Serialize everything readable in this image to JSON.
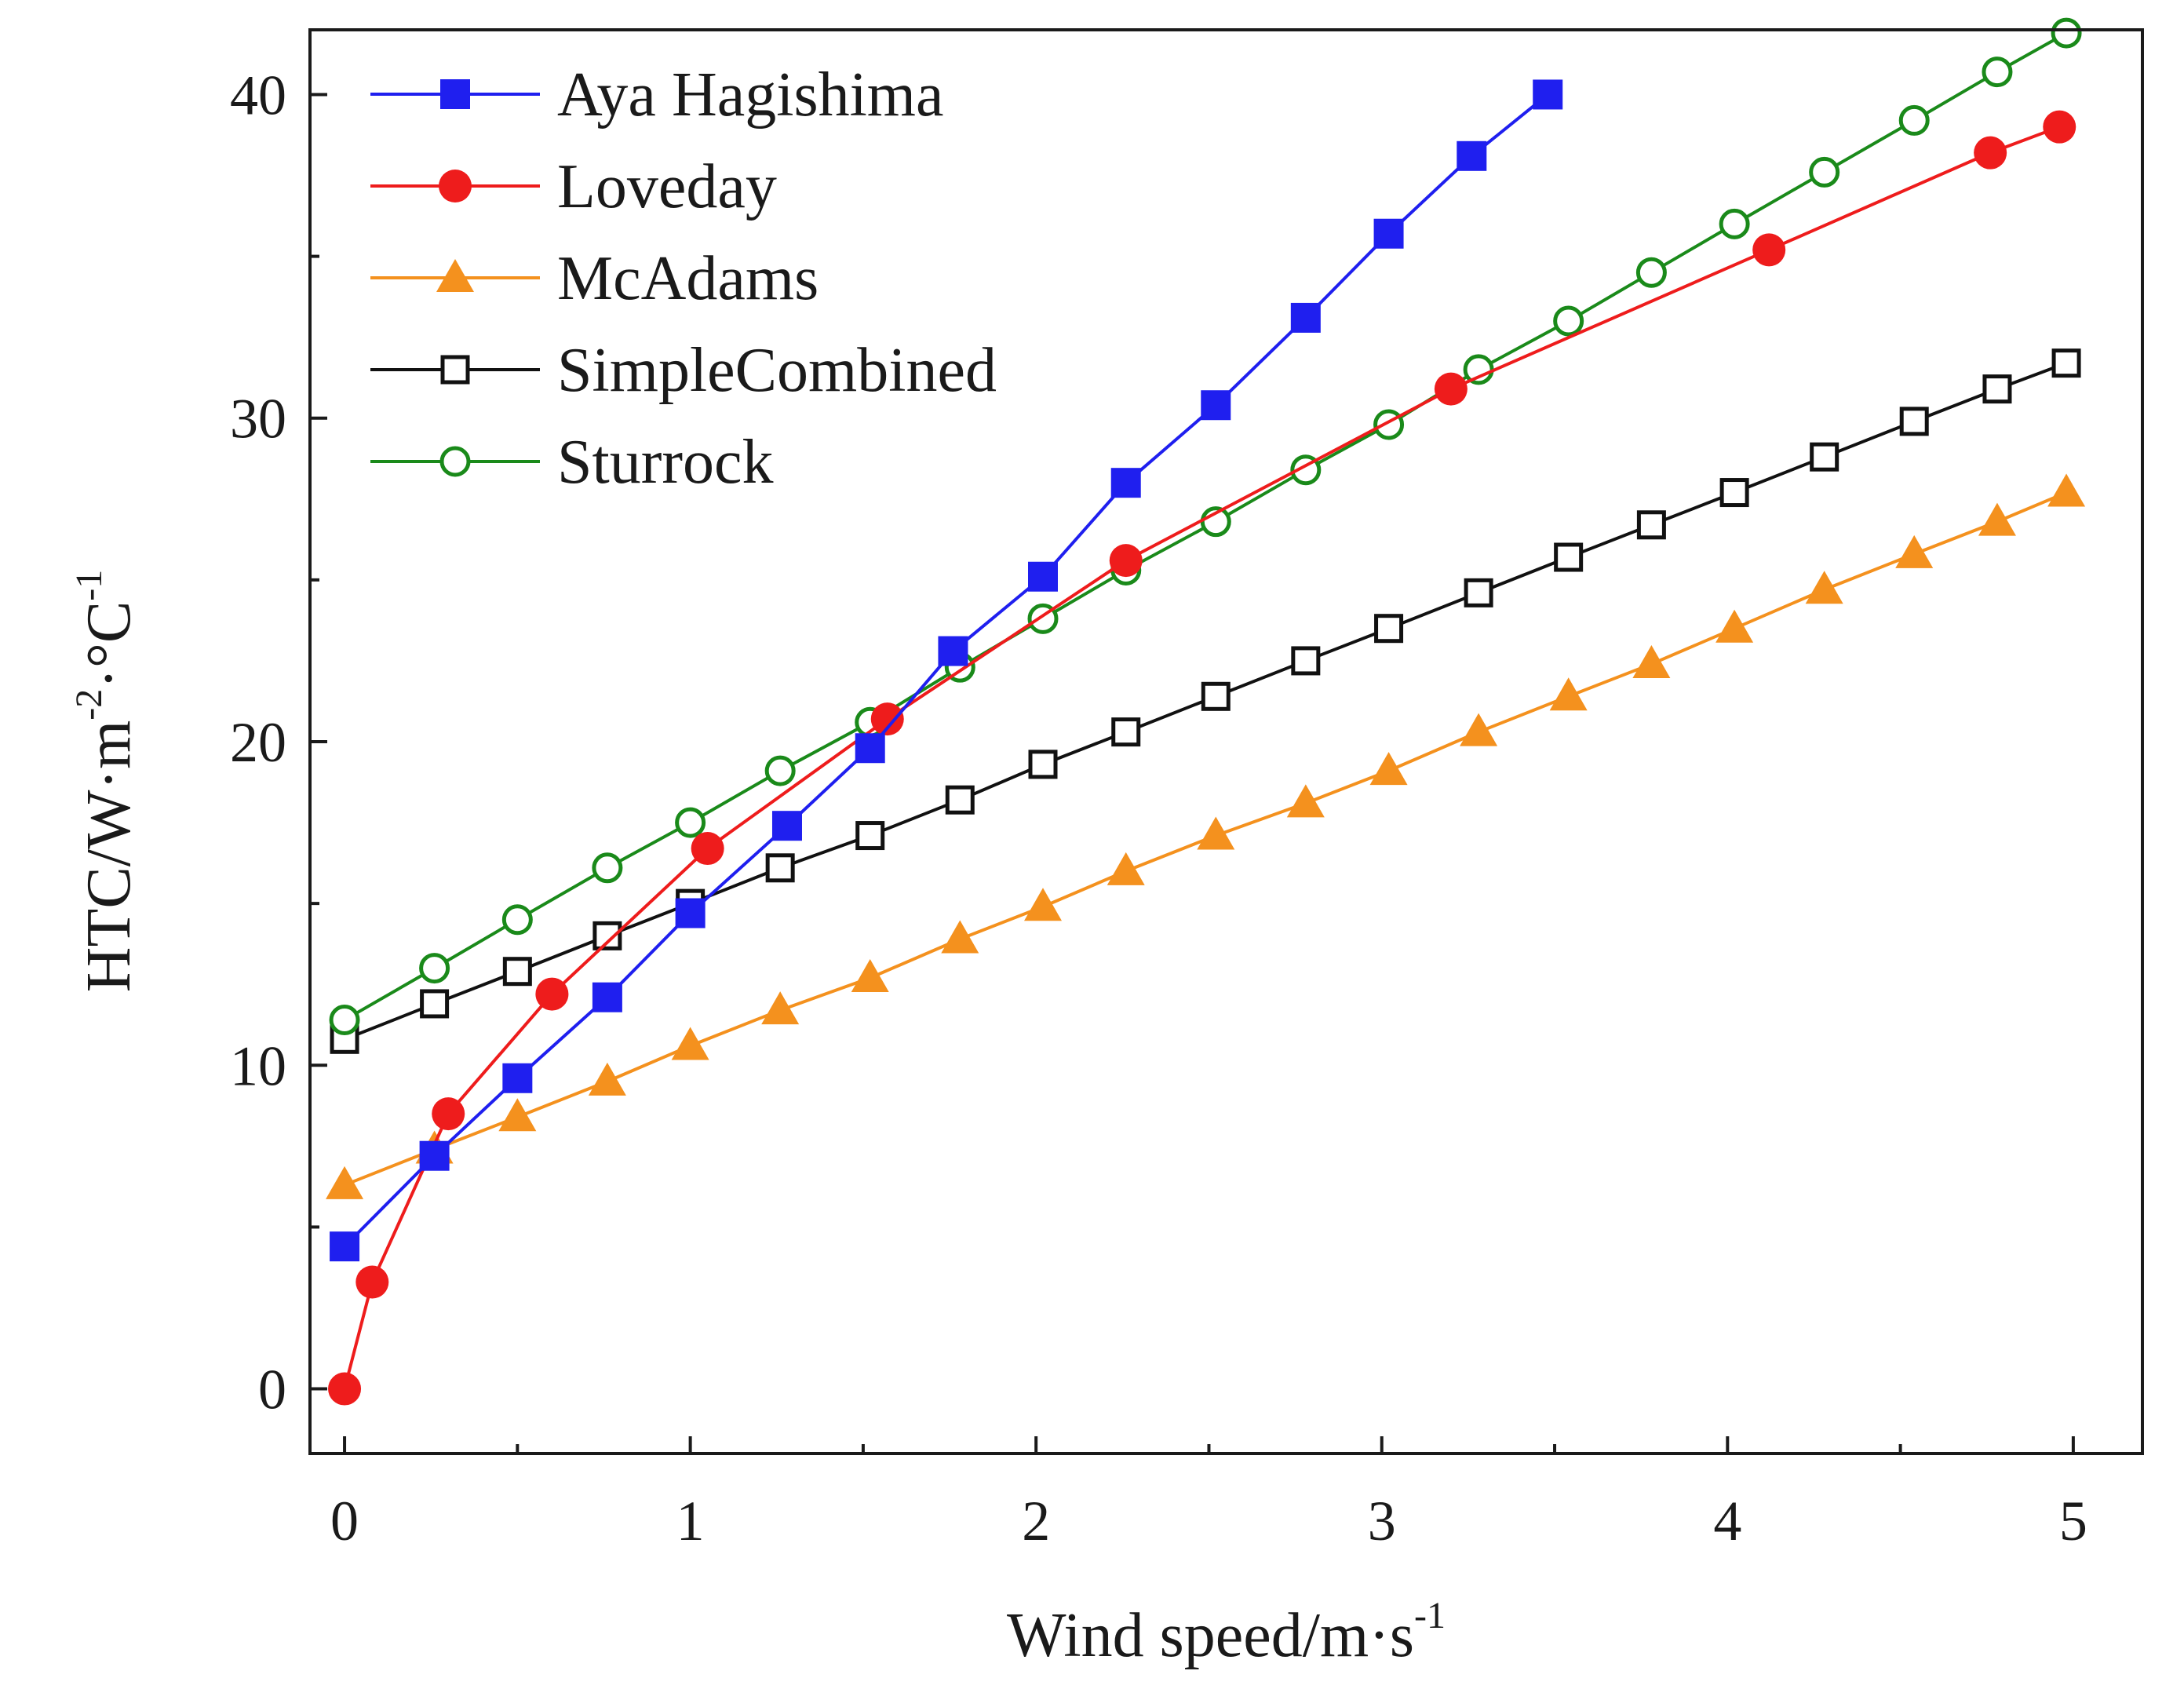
{
  "chart_data": {
    "type": "line",
    "title": "",
    "xlabel": "Wind speed/m·s",
    "xlabel_sup": "-1",
    "ylabel": "HTC/W·m",
    "ylabel_sup1": "-2",
    "ylabel_mid": "·°C",
    "ylabel_sup2": "-1",
    "xlim": [
      -0.1,
      5.2
    ],
    "ylim": [
      -2,
      42
    ],
    "xticks": [
      0,
      1,
      2,
      3,
      4,
      5
    ],
    "yticks": [
      0,
      10,
      20,
      30,
      40
    ],
    "legend_position": "top-left",
    "grid": false,
    "series": [
      {
        "name": "Aya Hagishima",
        "color": "#1f1fef",
        "marker": "square-filled",
        "x": [
          0,
          0.26,
          0.5,
          0.76,
          1.0,
          1.28,
          1.52,
          1.76,
          2.02,
          2.26,
          2.52,
          2.78,
          3.02,
          3.26,
          3.48
        ],
        "y": [
          4.4,
          7.2,
          9.6,
          12.1,
          14.7,
          17.4,
          19.8,
          22.8,
          25.1,
          28.0,
          30.4,
          33.1,
          35.7,
          38.1,
          40.0
        ]
      },
      {
        "name": "Loveday",
        "color": "#ee1c1c",
        "marker": "circle-filled",
        "x": [
          0,
          0.08,
          0.3,
          0.6,
          1.05,
          1.57,
          2.26,
          3.2,
          4.12,
          4.76,
          4.96
        ],
        "y": [
          0,
          3.3,
          8.5,
          12.2,
          16.7,
          20.7,
          25.6,
          30.9,
          35.2,
          38.2,
          39.0
        ]
      },
      {
        "name": "McAdams",
        "color": "#f4911e",
        "marker": "triangle-filled",
        "x": [
          0,
          0.26,
          0.5,
          0.76,
          1.0,
          1.26,
          1.52,
          1.78,
          2.02,
          2.26,
          2.52,
          2.78,
          3.02,
          3.28,
          3.54,
          3.78,
          4.02,
          4.28,
          4.54,
          4.78,
          4.98
        ],
        "y": [
          6.3,
          7.4,
          8.4,
          9.5,
          10.6,
          11.7,
          12.7,
          13.9,
          14.9,
          16.0,
          17.1,
          18.1,
          19.1,
          20.3,
          21.4,
          22.4,
          23.5,
          24.7,
          25.8,
          26.8,
          27.7
        ]
      },
      {
        "name": "SimpleCombined",
        "color": "#111111",
        "marker": "square-open",
        "x": [
          0,
          0.26,
          0.5,
          0.76,
          1.0,
          1.26,
          1.52,
          1.78,
          2.02,
          2.26,
          2.52,
          2.78,
          3.02,
          3.28,
          3.54,
          3.78,
          4.02,
          4.28,
          4.54,
          4.78,
          4.98
        ],
        "y": [
          10.8,
          11.9,
          12.9,
          14.0,
          15.0,
          16.1,
          17.1,
          18.2,
          19.3,
          20.3,
          21.4,
          22.5,
          23.5,
          24.6,
          25.7,
          26.7,
          27.7,
          28.8,
          29.9,
          30.9,
          31.7
        ]
      },
      {
        "name": "Sturrock",
        "color": "#1a8a1a",
        "marker": "circle-open",
        "x": [
          0,
          0.26,
          0.5,
          0.76,
          1.0,
          1.26,
          1.52,
          1.78,
          2.02,
          2.26,
          2.52,
          2.78,
          3.02,
          3.28,
          3.54,
          3.78,
          4.02,
          4.28,
          4.54,
          4.78,
          4.98
        ],
        "y": [
          11.4,
          13.0,
          14.5,
          16.1,
          17.5,
          19.1,
          20.6,
          22.3,
          23.8,
          25.3,
          26.8,
          28.4,
          29.8,
          31.5,
          33.0,
          34.5,
          36.0,
          37.6,
          39.2,
          40.7,
          41.9
        ]
      }
    ]
  }
}
